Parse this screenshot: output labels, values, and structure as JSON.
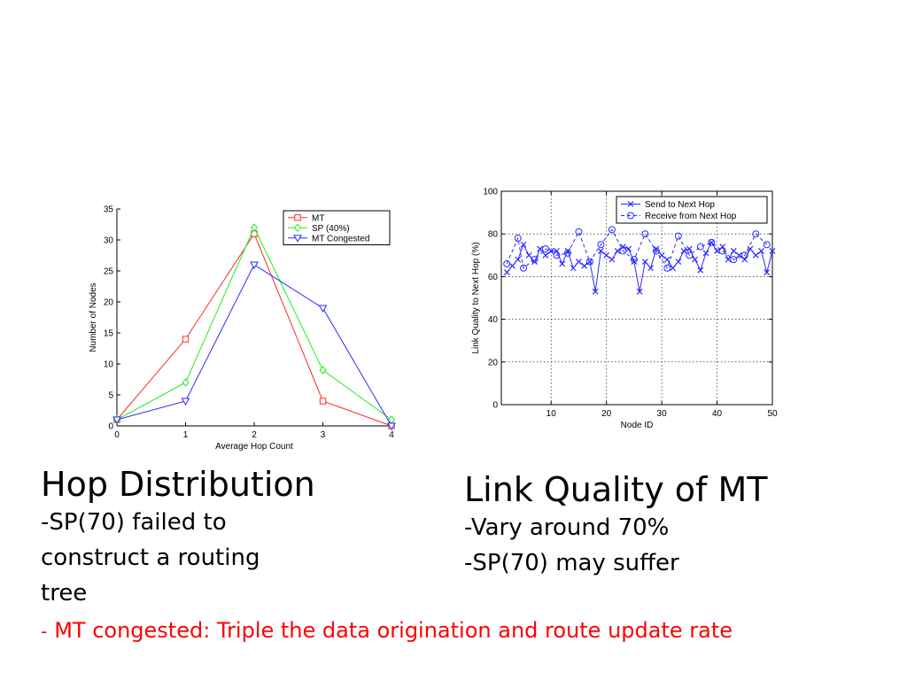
{
  "chart_data": [
    {
      "type": "line",
      "title": "",
      "xlabel": "Average Hop Count",
      "ylabel": "Number of Nodes",
      "x": [
        0,
        1,
        2,
        3,
        4
      ],
      "xlim": [
        0,
        4
      ],
      "ylim": [
        0,
        35
      ],
      "xticks": [
        0,
        1,
        2,
        3,
        4
      ],
      "yticks": [
        0,
        5,
        10,
        15,
        20,
        25,
        30,
        35
      ],
      "grid": false,
      "legend_position": "top-right",
      "series": [
        {
          "name": "MT",
          "values": [
            1,
            14,
            31,
            4,
            0
          ],
          "color": "#ff2a2a",
          "marker": "square"
        },
        {
          "name": "SP (40%)",
          "values": [
            1,
            7,
            32,
            9,
            1
          ],
          "color": "#22ee22",
          "marker": "diamond"
        },
        {
          "name": "MT Congested",
          "values": [
            1,
            4,
            26,
            19,
            0
          ],
          "color": "#2a2aff",
          "marker": "triangle-down"
        }
      ]
    },
    {
      "type": "line",
      "title": "",
      "xlabel": "Node ID",
      "ylabel": "Link Quality to Next Hop (%)",
      "xlim": [
        1,
        50
      ],
      "ylim": [
        0,
        100
      ],
      "xticks": [
        10,
        20,
        30,
        40,
        50
      ],
      "yticks": [
        0,
        20,
        40,
        60,
        80,
        100
      ],
      "grid": true,
      "legend_position": "top-right",
      "series": [
        {
          "name": "Send to Next Hop",
          "marker": "x",
          "linestyle": "solid",
          "color": "#2a2aff",
          "x": [
            2,
            3,
            4,
            5,
            6,
            7,
            8,
            9,
            10,
            11,
            12,
            13,
            14,
            15,
            16,
            17,
            18,
            19,
            20,
            21,
            22,
            23,
            24,
            25,
            26,
            27,
            28,
            29,
            30,
            31,
            32,
            33,
            34,
            35,
            36,
            37,
            38,
            39,
            40,
            41,
            42,
            43,
            44,
            45,
            46,
            47,
            48,
            49,
            50
          ],
          "values": [
            62,
            65,
            68,
            75,
            70,
            67,
            73,
            70,
            72,
            72,
            66,
            72,
            64,
            67,
            65,
            67,
            53,
            72,
            70,
            68,
            72,
            74,
            73,
            67,
            53,
            67,
            64,
            73,
            70,
            68,
            64,
            67,
            72,
            73,
            68,
            63,
            71,
            76,
            72,
            74,
            68,
            72,
            70,
            68,
            73,
            70,
            72,
            62,
            72
          ]
        },
        {
          "name": "Receive from Next Hop",
          "marker": "circle",
          "linestyle": "dashed",
          "color": "#2a2aff",
          "x": [
            2,
            4,
            5,
            7,
            9,
            11,
            13,
            15,
            17,
            19,
            21,
            23,
            25,
            27,
            29,
            31,
            33,
            35,
            37,
            39,
            41,
            43,
            45,
            47,
            49
          ],
          "values": [
            66,
            78,
            64,
            68,
            73,
            70,
            71,
            81,
            67,
            75,
            82,
            72,
            68,
            80,
            72,
            64,
            79,
            70,
            74,
            76,
            72,
            68,
            70,
            80,
            75
          ]
        }
      ]
    }
  ],
  "captions": {
    "left": {
      "title": "Hop Distribution",
      "lines": [
        "-SP(70) failed to",
        "construct a routing",
        "tree"
      ]
    },
    "right": {
      "title": "Link Quality of MT",
      "lines": [
        "-Vary around 70%",
        "-SP(70) may suffer"
      ]
    }
  },
  "note": {
    "dash": "-",
    "text": "MT congested: Triple the data origination and route update rate",
    "color": "#ff0000"
  }
}
